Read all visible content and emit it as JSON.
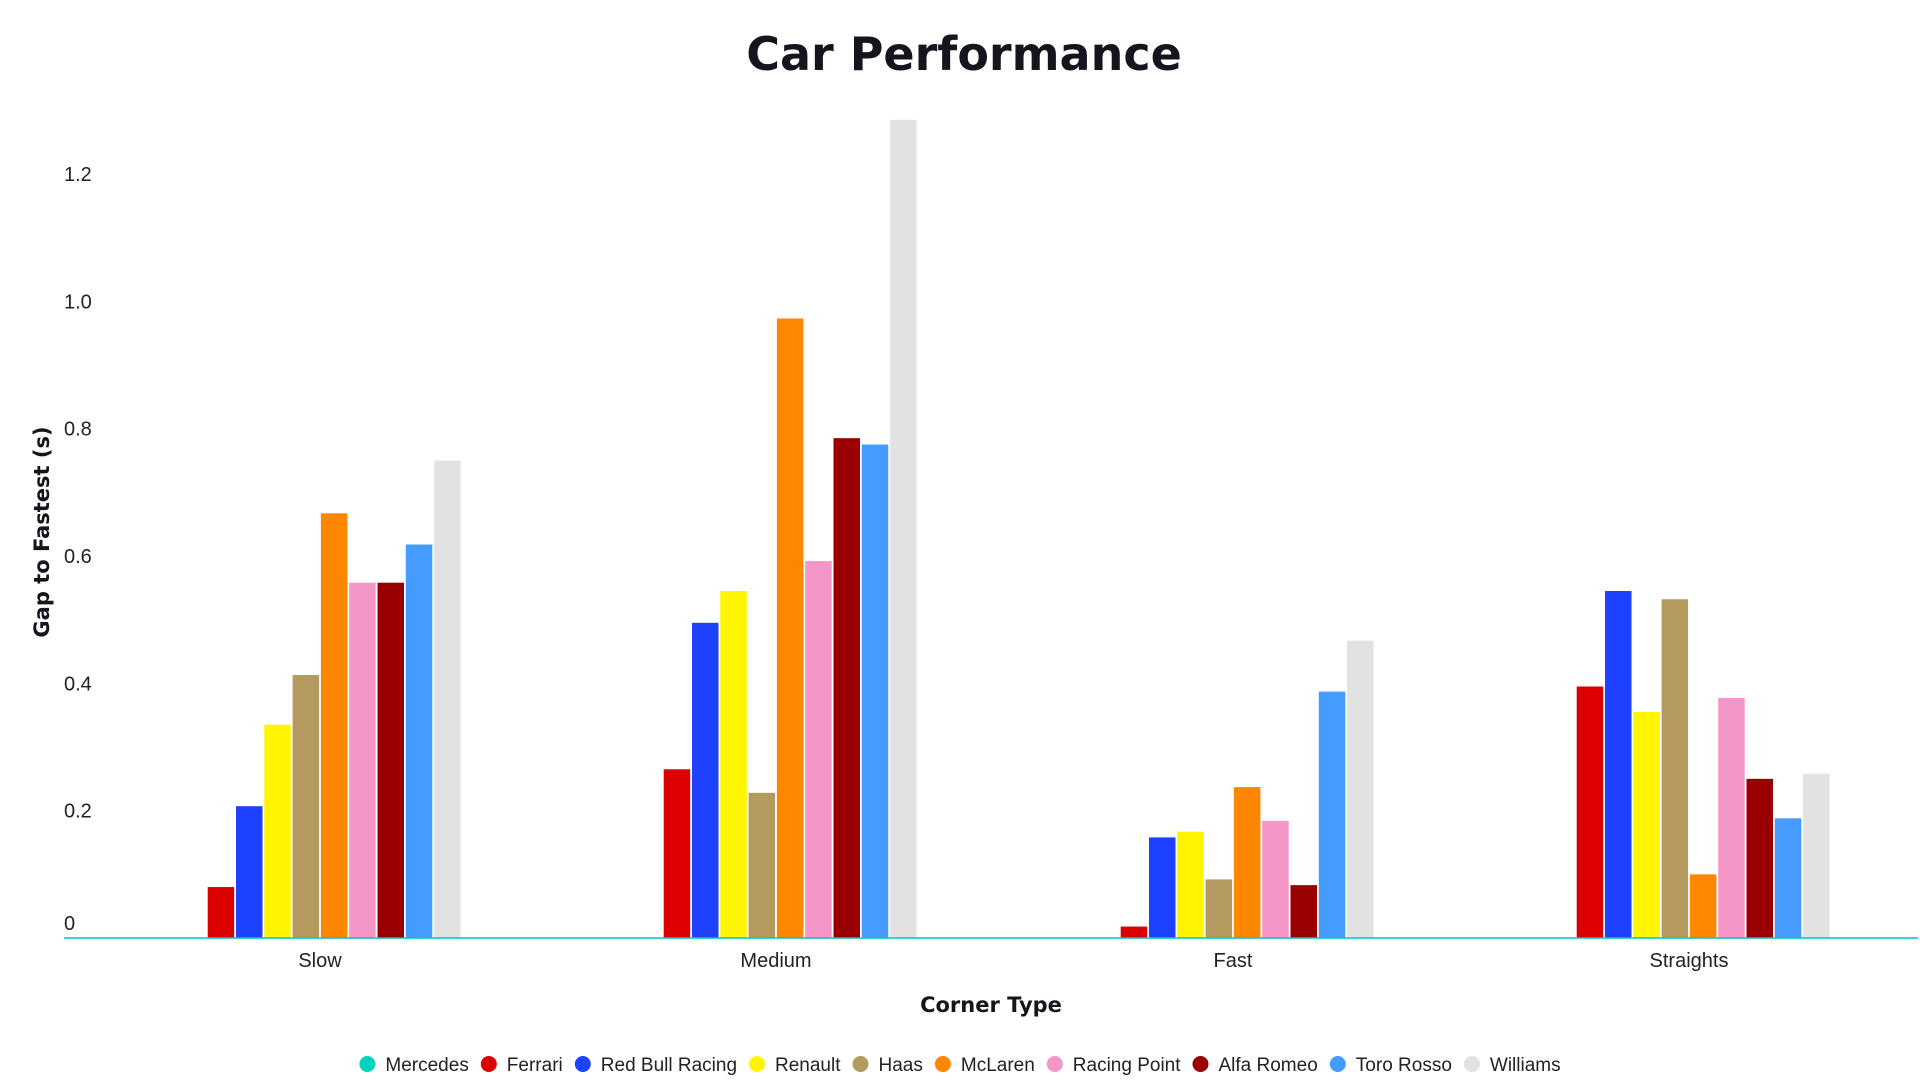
{
  "chart_data": {
    "type": "bar",
    "title": "Car Performance",
    "xlabel": "Corner Type",
    "ylabel": "Gap to Fastest (s)",
    "categories": [
      "Slow",
      "Medium",
      "Fast",
      "Straights"
    ],
    "ylim": [
      0,
      1.28
    ],
    "yticks": [
      {
        "value": 0,
        "label": "0"
      },
      {
        "value": 0.2,
        "label": "0.2"
      },
      {
        "value": 0.4,
        "label": "0.4"
      },
      {
        "value": 0.6,
        "label": "0.6"
      },
      {
        "value": 0.8,
        "label": "0.8"
      },
      {
        "value": 1.0,
        "label": "1.0"
      },
      {
        "value": 1.2,
        "label": "1.2"
      }
    ],
    "grid": false,
    "legend_position": "bottom",
    "axis_color": "#00c4c4",
    "series": [
      {
        "name": "Mercedes",
        "color": "#00d2be",
        "values": [
          0,
          0,
          0,
          0
        ]
      },
      {
        "name": "Ferrari",
        "color": "#dc0000",
        "values": [
          0.08,
          0.265,
          0.018,
          0.395
        ]
      },
      {
        "name": "Red Bull Racing",
        "color": "#1e41ff",
        "values": [
          0.207,
          0.495,
          0.158,
          0.545
        ]
      },
      {
        "name": "Renault",
        "color": "#fff500",
        "values": [
          0.335,
          0.545,
          0.167,
          0.355
        ]
      },
      {
        "name": "Haas",
        "color": "#b59a60",
        "values": [
          0.413,
          0.228,
          0.092,
          0.532
        ]
      },
      {
        "name": "McLaren",
        "color": "#ff8700",
        "values": [
          0.667,
          0.973,
          0.237,
          0.1
        ]
      },
      {
        "name": "Racing Point",
        "color": "#f596c8",
        "values": [
          0.558,
          0.592,
          0.184,
          0.377
        ]
      },
      {
        "name": "Alfa Romeo",
        "color": "#9b0000",
        "values": [
          0.558,
          0.785,
          0.083,
          0.25
        ]
      },
      {
        "name": "Toro Rosso",
        "color": "#469bff",
        "values": [
          0.618,
          0.775,
          0.387,
          0.188
        ]
      },
      {
        "name": "Williams",
        "color": "#e2e2e2",
        "values": [
          0.75,
          1.285,
          0.467,
          0.258
        ]
      }
    ]
  }
}
